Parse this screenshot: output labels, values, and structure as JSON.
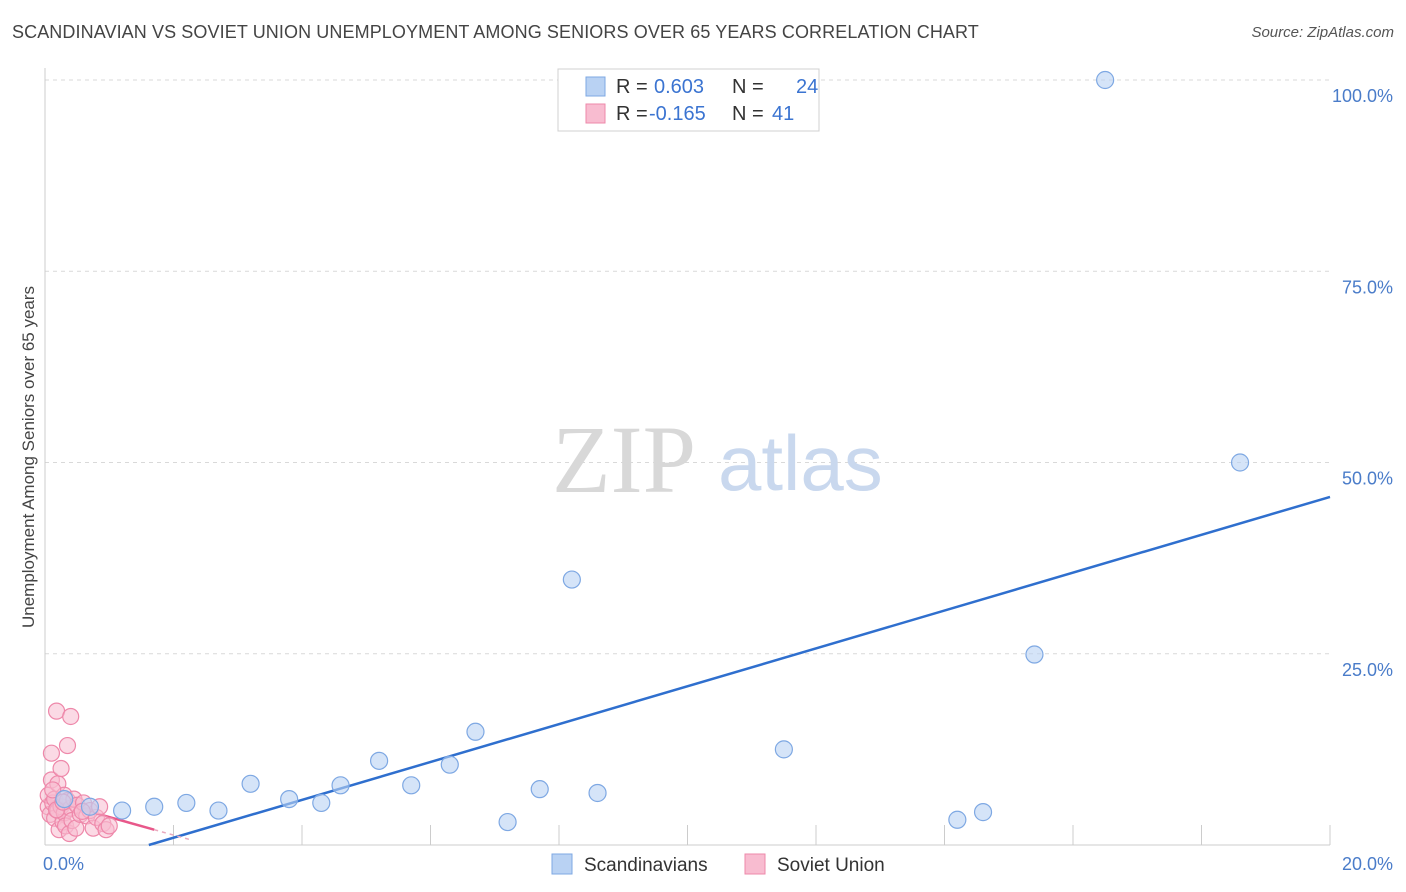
{
  "header": {
    "title": "SCANDINAVIAN VS SOVIET UNION UNEMPLOYMENT AMONG SENIORS OVER 65 YEARS CORRELATION CHART",
    "source": "Source: ZipAtlas.com"
  },
  "watermark": {
    "zip": "ZIP",
    "atlas": "atlas"
  },
  "colors": {
    "blue_fill": "#b9d2f3",
    "blue_stroke": "#7ea8e3",
    "blue_line": "#2f6fce",
    "pink_fill": "#f8bcd0",
    "pink_stroke": "#ee88aa",
    "pink_line": "#e8588a",
    "grid": "#d9d9d9",
    "tick": "#4a7cc9"
  },
  "legend": {
    "rows": [
      {
        "r_label": "R =",
        "r_value": "0.603",
        "n_label": "N =",
        "n_value": "24"
      },
      {
        "r_label": "R =",
        "r_value": "-0.165",
        "n_label": "N =",
        "n_value": "41"
      }
    ]
  },
  "chart_data": {
    "type": "scatter",
    "title": "SCANDINAVIAN VS SOVIET UNION UNEMPLOYMENT AMONG SENIORS OVER 65 YEARS CORRELATION CHART",
    "xlabel": "",
    "ylabel": "Unemployment Among Seniors over 65 years",
    "xlim": [
      0,
      20
    ],
    "ylim": [
      0,
      100
    ],
    "x_tick_labels": [
      "0.0%",
      "20.0%"
    ],
    "y_ticks": [
      25,
      50,
      75,
      100
    ],
    "y_tick_labels": [
      "25.0%",
      "50.0%",
      "75.0%",
      "100.0%"
    ],
    "grid": true,
    "legend_position": "top-center",
    "series": [
      {
        "name": "Scandinavians",
        "r": 0.603,
        "n": 24,
        "trend": {
          "x": [
            0,
            20
          ],
          "y": [
            -4.0,
            45.5
          ],
          "style": "solid"
        },
        "points": [
          {
            "x": 0.3,
            "y": 6.0
          },
          {
            "x": 0.7,
            "y": 5.0
          },
          {
            "x": 1.2,
            "y": 4.5
          },
          {
            "x": 1.7,
            "y": 5.0
          },
          {
            "x": 2.2,
            "y": 5.5
          },
          {
            "x": 2.7,
            "y": 4.5
          },
          {
            "x": 3.2,
            "y": 8.0
          },
          {
            "x": 3.8,
            "y": 6.0
          },
          {
            "x": 4.3,
            "y": 5.5
          },
          {
            "x": 4.6,
            "y": 7.8
          },
          {
            "x": 5.2,
            "y": 11.0
          },
          {
            "x": 5.7,
            "y": 7.8
          },
          {
            "x": 6.3,
            "y": 10.5
          },
          {
            "x": 6.7,
            "y": 14.8
          },
          {
            "x": 7.2,
            "y": 3.0
          },
          {
            "x": 7.7,
            "y": 7.3
          },
          {
            "x": 8.2,
            "y": 34.7
          },
          {
            "x": 8.6,
            "y": 6.8
          },
          {
            "x": 11.5,
            "y": 12.5
          },
          {
            "x": 14.2,
            "y": 3.3
          },
          {
            "x": 14.6,
            "y": 4.3
          },
          {
            "x": 15.4,
            "y": 24.9
          },
          {
            "x": 16.5,
            "y": 100.0
          },
          {
            "x": 18.6,
            "y": 50.0
          }
        ]
      },
      {
        "name": "Soviet Union",
        "r": -0.165,
        "n": 41,
        "trend": {
          "x": [
            0,
            1.7
          ],
          "y": [
            6.0,
            2.0
          ],
          "style": "solid",
          "extended_x": [
            1.7,
            2.3
          ],
          "extended_y": [
            2.0,
            0.6
          ]
        },
        "points": [
          {
            "x": 0.05,
            "y": 5.0
          },
          {
            "x": 0.05,
            "y": 6.5
          },
          {
            "x": 0.08,
            "y": 4.0
          },
          {
            "x": 0.1,
            "y": 12.0
          },
          {
            "x": 0.1,
            "y": 8.5
          },
          {
            "x": 0.12,
            "y": 5.5
          },
          {
            "x": 0.15,
            "y": 3.5
          },
          {
            "x": 0.15,
            "y": 6.0
          },
          {
            "x": 0.18,
            "y": 17.5
          },
          {
            "x": 0.2,
            "y": 4.5
          },
          {
            "x": 0.2,
            "y": 8.0
          },
          {
            "x": 0.22,
            "y": 2.0
          },
          {
            "x": 0.25,
            "y": 10.0
          },
          {
            "x": 0.25,
            "y": 5.0
          },
          {
            "x": 0.28,
            "y": 3.0
          },
          {
            "x": 0.3,
            "y": 6.5
          },
          {
            "x": 0.3,
            "y": 4.2
          },
          {
            "x": 0.32,
            "y": 2.5
          },
          {
            "x": 0.35,
            "y": 13.0
          },
          {
            "x": 0.35,
            "y": 5.8
          },
          {
            "x": 0.38,
            "y": 1.5
          },
          {
            "x": 0.4,
            "y": 16.8
          },
          {
            "x": 0.4,
            "y": 4.8
          },
          {
            "x": 0.42,
            "y": 3.2
          },
          {
            "x": 0.45,
            "y": 6.0
          },
          {
            "x": 0.48,
            "y": 2.2
          },
          {
            "x": 0.5,
            "y": 5.2
          },
          {
            "x": 0.55,
            "y": 4.0
          },
          {
            "x": 0.6,
            "y": 5.5
          },
          {
            "x": 0.65,
            "y": 3.8
          },
          {
            "x": 0.7,
            "y": 4.5
          },
          {
            "x": 0.75,
            "y": 2.2
          },
          {
            "x": 0.8,
            "y": 3.6
          },
          {
            "x": 0.9,
            "y": 2.8
          },
          {
            "x": 0.95,
            "y": 2.0
          },
          {
            "x": 1.0,
            "y": 2.5
          },
          {
            "x": 0.12,
            "y": 7.2
          },
          {
            "x": 0.18,
            "y": 4.6
          },
          {
            "x": 0.28,
            "y": 5.6
          },
          {
            "x": 0.58,
            "y": 4.4
          },
          {
            "x": 0.85,
            "y": 5.0
          }
        ]
      }
    ]
  }
}
